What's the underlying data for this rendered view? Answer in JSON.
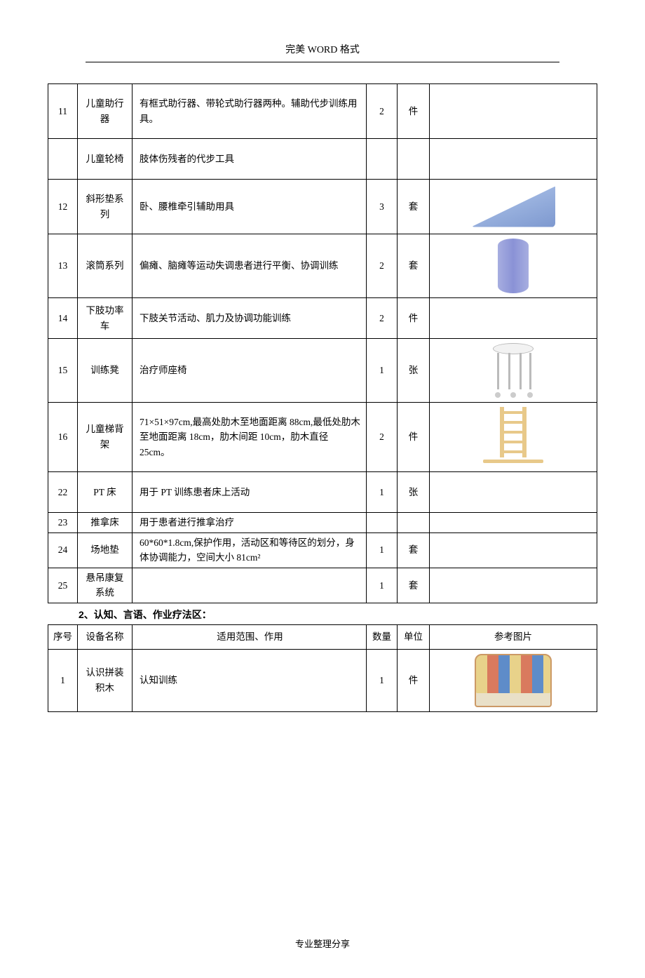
{
  "header": {
    "title_prefix": "完美 ",
    "title_word": "WORD ",
    "title_suffix": "格式"
  },
  "footer": {
    "text": "专业整理分享"
  },
  "section2_heading": "2、认知、言语、作业疗法区：",
  "table1": {
    "rows": [
      {
        "num": "11",
        "name": "儿童助行器",
        "desc": "有框式助行器、带轮式助行器两种。辅助代步训练用具。",
        "qty": "2",
        "unit": "件",
        "img": null,
        "cls": "tall-row"
      },
      {
        "num": "",
        "name": "儿童轮椅",
        "desc": "肢体伤残者的代步工具",
        "qty": "",
        "unit": "",
        "img": null,
        "cls": "mid-row"
      },
      {
        "num": "12",
        "name": "斜形垫系列",
        "desc": "卧、腰椎牵引辅助用具",
        "qty": "3",
        "unit": "套",
        "img": "wedge",
        "cls": "tall-row"
      },
      {
        "num": "13",
        "name": "滚筒系列",
        "desc": "偏瘫、脑瘫等运动失调患者进行平衡、协调训练",
        "qty": "2",
        "unit": "套",
        "img": "roller",
        "cls": "tall-row"
      },
      {
        "num": "14",
        "name": "下肢功率车",
        "desc": "下肢关节活动、肌力及协调功能训练",
        "qty": "2",
        "unit": "件",
        "img": null,
        "cls": "mid-row"
      },
      {
        "num": "15",
        "name": "训练凳",
        "desc": "治疗师座椅",
        "qty": "1",
        "unit": "张",
        "img": "stool",
        "cls": "tall-row"
      },
      {
        "num": "16",
        "name": "儿童梯背架",
        "desc": "71×51×97cm,最高处肋木至地面距离 88cm,最低处肋木至地面距离 18cm，肋木间距 10cm，肋木直径 25cm。",
        "qty": "2",
        "unit": "件",
        "img": "ladder",
        "cls": "tall-row"
      },
      {
        "num": "22",
        "name": "PT 床",
        "desc": "用于 PT 训练患者床上活动",
        "qty": "1",
        "unit": "张",
        "img": null,
        "cls": "mid-row"
      },
      {
        "num": "23",
        "name": "推拿床",
        "desc": "用于患者进行推拿治疗",
        "qty": "",
        "unit": "",
        "img": null,
        "cls": "short-row"
      },
      {
        "num": "24",
        "name": "场地垫",
        "desc": "60*60*1.8cm,保护作用，活动区和等待区的划分，身体协调能力，空间大小 81cm²",
        "qty": "1",
        "unit": "套",
        "img": null,
        "cls": "short-row"
      },
      {
        "num": "25",
        "name": "悬吊康复系统",
        "desc": "",
        "qty": "1",
        "unit": "套",
        "img": null,
        "cls": "short-row"
      }
    ]
  },
  "table2": {
    "headers": {
      "num": "序号",
      "name": "设备名称",
      "desc": "适用范围、作用",
      "qty": "数量",
      "unit": "单位",
      "img": "参考图片"
    },
    "rows": [
      {
        "num": "1",
        "name": "认识拼装积木",
        "desc": "认知训练",
        "qty": "1",
        "unit": "件",
        "img": "puzzle",
        "cls": "tall-row"
      }
    ]
  }
}
